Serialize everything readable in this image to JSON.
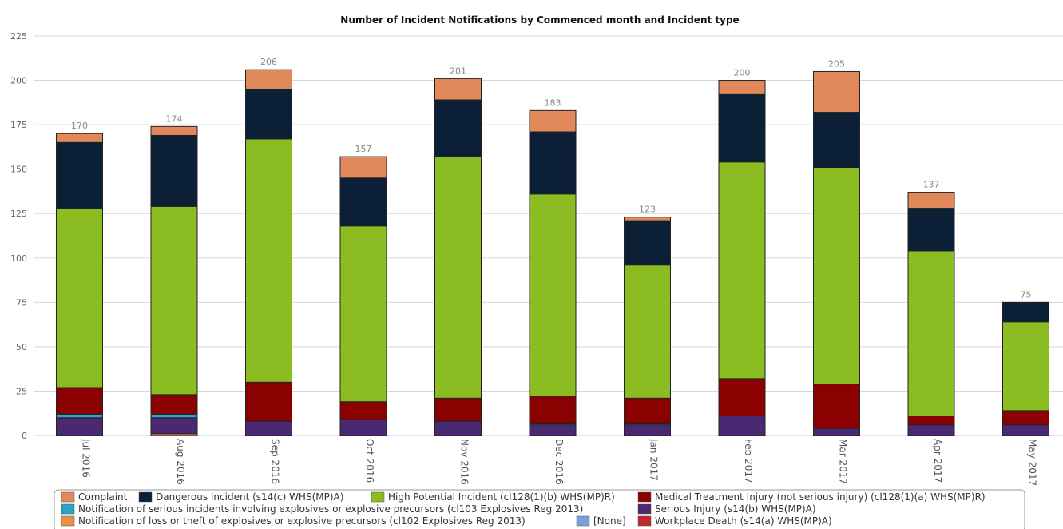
{
  "chart_data": {
    "type": "bar",
    "stacked": true,
    "title": "Number of Incident Notifications by Commenced month and Incident type",
    "xlabel": "",
    "ylabel": "",
    "ylim": [
      0,
      225
    ],
    "yticks": [
      0,
      25,
      50,
      75,
      100,
      125,
      150,
      175,
      200,
      225
    ],
    "grid": true,
    "legend_position": "bottom",
    "categories": [
      "Jul 2016",
      "Aug 2016",
      "Sep 2016",
      "Oct 2016",
      "Nov 2016",
      "Dec 2016",
      "Jan 2017",
      "Feb 2017",
      "Mar 2017",
      "Apr 2017",
      "May 2017"
    ],
    "totals": [
      170,
      174,
      206,
      157,
      201,
      183,
      123,
      200,
      205,
      137,
      75
    ],
    "series": [
      {
        "name": "Workplace Death (s14(a) WHS(MP)A)",
        "color": "#c0282d",
        "values": [
          0,
          0,
          0,
          0,
          0,
          0,
          0,
          0,
          0,
          0,
          0
        ]
      },
      {
        "name": "Notification of loss or theft of explosives or explosive precursors (cl102 Explosives Reg 2013)",
        "color": "#e8914a",
        "values": [
          0,
          1,
          0,
          0,
          0,
          0,
          0,
          0,
          0,
          0,
          0
        ]
      },
      {
        "name": "[None]",
        "color": "#7d9fdc",
        "values": [
          0,
          0,
          0,
          0,
          0,
          0,
          0,
          0,
          0,
          0,
          0
        ]
      },
      {
        "name": "Serious Injury (s14(b) WHS(MP)A)",
        "color": "#4b2872",
        "values": [
          10,
          9,
          8,
          9,
          8,
          6,
          6,
          11,
          4,
          6,
          6
        ]
      },
      {
        "name": "Notification of serious incidents involving explosives or explosive precursors (cl103 Explosives Reg 2013)",
        "color": "#2aa3c8",
        "values": [
          2,
          2,
          0,
          0,
          0,
          1,
          1,
          0,
          0,
          0,
          0
        ]
      },
      {
        "name": "Medical Treatment Injury (not serious injury) (cl128(1)(a) WHS(MP)R)",
        "color": "#8b0000",
        "values": [
          15,
          11,
          22,
          10,
          13,
          15,
          14,
          21,
          25,
          5,
          8
        ]
      },
      {
        "name": "High Potential Incident (cl128(1)(b) WHS(MP)R)",
        "color": "#8bbd22",
        "values": [
          101,
          106,
          137,
          99,
          136,
          114,
          75,
          122,
          122,
          93,
          50
        ]
      },
      {
        "name": "Dangerous Incident (s14(c) WHS(MP)A)",
        "color": "#0b1f36",
        "values": [
          37,
          40,
          28,
          27,
          32,
          35,
          25,
          38,
          31,
          24,
          11
        ]
      },
      {
        "name": "Complaint",
        "color": "#e1895a",
        "values": [
          5,
          5,
          11,
          12,
          12,
          12,
          2,
          8,
          23,
          9,
          0
        ]
      }
    ],
    "legend_order": [
      "Complaint",
      "Dangerous Incident (s14(c) WHS(MP)A)",
      "High Potential Incident (cl128(1)(b) WHS(MP)R)",
      "Medical Treatment Injury (not serious injury) (cl128(1)(a) WHS(MP)R)",
      "Notification of serious incidents involving explosives or explosive precursors (cl103 Explosives Reg 2013)",
      "Serious Injury (s14(b) WHS(MP)A)",
      "Notification of loss or theft of explosives or explosive precursors (cl102 Explosives Reg 2013)",
      "[None]",
      "Workplace Death (s14(a) WHS(MP)A)"
    ]
  }
}
